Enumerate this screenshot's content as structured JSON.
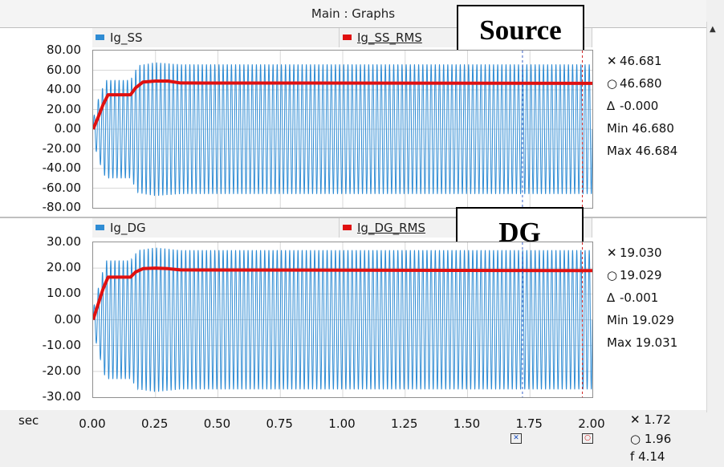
{
  "window": {
    "title": "Main : Graphs"
  },
  "colors": {
    "instant": "#2f8cd4",
    "rms": "#e01010"
  },
  "panels": [
    {
      "legend": [
        {
          "label": "Ig_SS",
          "color": "#2f8cd4"
        },
        {
          "label": "Ig_SS_RMS",
          "color": "#e01010"
        }
      ],
      "callout": "Source",
      "yticks": [
        "80.00",
        "60.00",
        "40.00",
        "20.00",
        "0.00",
        "-20.00",
        "-40.00",
        "-60.00",
        "-80.00"
      ],
      "readouts": {
        "x": "46.681",
        "o": "46.680",
        "delta": "-0.000",
        "min": "Min 46.680",
        "max": "Max 46.684"
      }
    },
    {
      "legend": [
        {
          "label": "Ig_DG",
          "color": "#2f8cd4"
        },
        {
          "label": "Ig_DG_RMS",
          "color": "#e01010"
        }
      ],
      "callout": "DG",
      "yticks": [
        "30.00",
        "20.00",
        "10.00",
        "0.00",
        "-10.00",
        "-20.00",
        "-30.00"
      ],
      "readouts": {
        "x": "19.030",
        "o": "19.029",
        "delta": "-0.001",
        "min": "Min 19.029",
        "max": "Max 19.031"
      }
    }
  ],
  "x_axis": {
    "unit": "sec",
    "ticks": [
      "0.00",
      "0.25",
      "0.50",
      "0.75",
      "1.00",
      "1.25",
      "1.50",
      "1.75",
      "2.00"
    ],
    "readouts": {
      "x": "1.72",
      "o": "1.96",
      "f": "4.14"
    }
  },
  "glyphs": {
    "cross": "✕",
    "circle": "○",
    "delta": "∆",
    "f": "f",
    "scroll_up": "▲"
  },
  "chart_data": [
    {
      "type": "line",
      "ylim": [
        -80,
        80
      ],
      "xlim": [
        0,
        2
      ],
      "series": [
        {
          "name": "Ig_SS",
          "kind": "sinusoid",
          "frequency_hz": 60,
          "amplitude_envelope": {
            "t": [
              0,
              0.02,
              0.05,
              0.15,
              0.18,
              0.25,
              0.35,
              2.0
            ],
            "a": [
              10,
              30,
              50,
              50,
              65,
              68,
              66,
              66
            ]
          }
        },
        {
          "name": "Ig_SS_RMS",
          "x": [
            0,
            0.02,
            0.04,
            0.06,
            0.15,
            0.17,
            0.2,
            0.25,
            0.3,
            0.35,
            2.0
          ],
          "y": [
            0,
            12,
            25,
            35,
            35,
            42,
            48,
            49,
            49,
            47,
            46.68
          ]
        }
      ]
    },
    {
      "type": "line",
      "ylim": [
        -30,
        30
      ],
      "xlim": [
        0,
        2
      ],
      "series": [
        {
          "name": "Ig_DG",
          "kind": "sinusoid",
          "frequency_hz": 60,
          "amplitude_envelope": {
            "t": [
              0,
              0.02,
              0.05,
              0.15,
              0.18,
              0.25,
              0.35,
              2.0
            ],
            "a": [
              4,
              12,
              23,
              23,
              27,
              28,
              27,
              27
            ]
          }
        },
        {
          "name": "Ig_DG_RMS",
          "x": [
            0,
            0.02,
            0.04,
            0.06,
            0.15,
            0.17,
            0.2,
            0.25,
            0.3,
            0.35,
            2.0
          ],
          "y": [
            0,
            6,
            12,
            16.5,
            16.5,
            18.5,
            19.8,
            20,
            19.8,
            19.3,
            19.03
          ]
        }
      ]
    }
  ]
}
